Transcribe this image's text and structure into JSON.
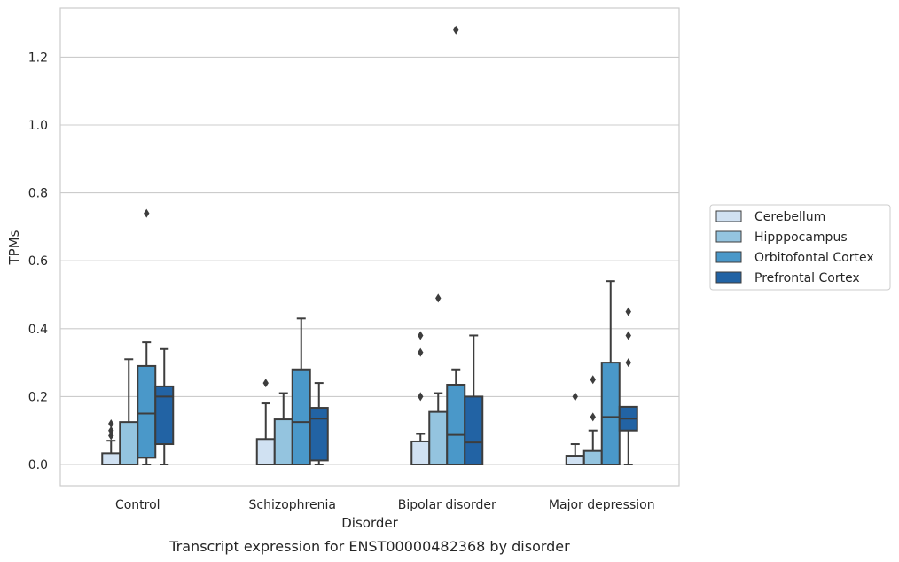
{
  "caption": "Transcript expression for ENST00000482368 by disorder",
  "chart_data": {
    "type": "box",
    "xlabel": "Disorder",
    "ylabel": "TPMs",
    "ylim": [
      -0.06,
      1.35
    ],
    "yticks": [
      "0.0",
      "0.2",
      "0.4",
      "0.6",
      "0.8",
      "1.0",
      "1.2"
    ],
    "grid": "horizontal",
    "legend_placement": "right",
    "categories": [
      "Control",
      "Schizophrenia",
      "Bipolar disorder",
      "Major depression"
    ],
    "series": [
      {
        "name": "Cerebellum",
        "color": "#d0e1f2",
        "boxes": [
          {
            "whislo": 0.0,
            "q1": 0.0,
            "med": 0.0,
            "q3": 0.033,
            "whishi": 0.07,
            "fliers": [
              0.085,
              0.1,
              0.12
            ]
          },
          {
            "whislo": 0.0,
            "q1": 0.0,
            "med": 0.0,
            "q3": 0.075,
            "whishi": 0.18,
            "fliers": [
              0.24
            ]
          },
          {
            "whislo": 0.0,
            "q1": 0.0,
            "med": 0.0,
            "q3": 0.068,
            "whishi": 0.09,
            "fliers": [
              0.2,
              0.33,
              0.38
            ]
          },
          {
            "whislo": 0.0,
            "q1": 0.0,
            "med": 0.0,
            "q3": 0.026,
            "whishi": 0.06,
            "fliers": [
              0.2
            ]
          }
        ]
      },
      {
        "name": "Hipppocampus",
        "color": "#94c4df",
        "boxes": [
          {
            "whislo": 0.0,
            "q1": 0.0,
            "med": 0.0,
            "q3": 0.125,
            "whishi": 0.31,
            "fliers": []
          },
          {
            "whislo": 0.0,
            "q1": 0.0,
            "med": 0.0,
            "q3": 0.133,
            "whishi": 0.21,
            "fliers": []
          },
          {
            "whislo": 0.0,
            "q1": 0.0,
            "med": 0.0,
            "q3": 0.155,
            "whishi": 0.21,
            "fliers": [
              0.49
            ]
          },
          {
            "whislo": 0.0,
            "q1": 0.0,
            "med": 0.0,
            "q3": 0.04,
            "whishi": 0.1,
            "fliers": [
              0.14,
              0.25
            ]
          }
        ]
      },
      {
        "name": "Orbitofontal Cortex",
        "color": "#4a98c9",
        "boxes": [
          {
            "whislo": 0.0,
            "q1": 0.02,
            "med": 0.15,
            "q3": 0.29,
            "whishi": 0.36,
            "fliers": [
              0.74
            ]
          },
          {
            "whislo": 0.0,
            "q1": 0.0,
            "med": 0.125,
            "q3": 0.28,
            "whishi": 0.43,
            "fliers": []
          },
          {
            "whislo": 0.0,
            "q1": 0.0,
            "med": 0.087,
            "q3": 0.235,
            "whishi": 0.28,
            "fliers": [
              1.28
            ]
          },
          {
            "whislo": 0.0,
            "q1": 0.0,
            "med": 0.14,
            "q3": 0.3,
            "whishi": 0.54,
            "fliers": []
          }
        ]
      },
      {
        "name": "Prefrontal Cortex",
        "color": "#2263a4",
        "boxes": [
          {
            "whislo": 0.0,
            "q1": 0.06,
            "med": 0.2,
            "q3": 0.23,
            "whishi": 0.34,
            "fliers": []
          },
          {
            "whislo": 0.0,
            "q1": 0.012,
            "med": 0.135,
            "q3": 0.167,
            "whishi": 0.24,
            "fliers": []
          },
          {
            "whislo": 0.0,
            "q1": 0.0,
            "med": 0.065,
            "q3": 0.2,
            "whishi": 0.38,
            "fliers": []
          },
          {
            "whislo": 0.0,
            "q1": 0.1,
            "med": 0.135,
            "q3": 0.17,
            "whishi": 0.17,
            "fliers": [
              0.3,
              0.38,
              0.45
            ]
          }
        ]
      }
    ]
  }
}
